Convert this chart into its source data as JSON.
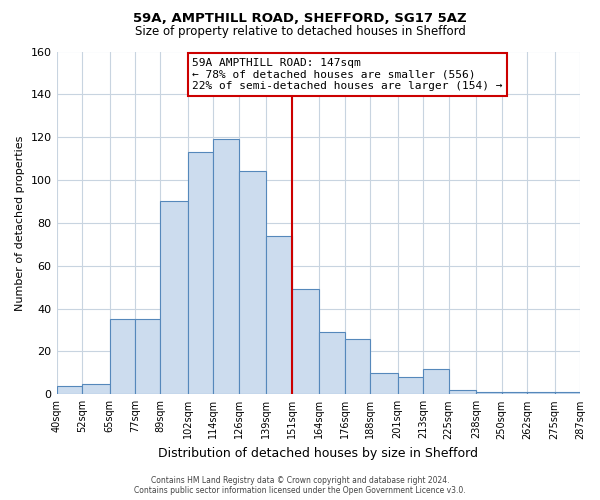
{
  "title1": "59A, AMPTHILL ROAD, SHEFFORD, SG17 5AZ",
  "title2": "Size of property relative to detached houses in Shefford",
  "xlabel": "Distribution of detached houses by size in Shefford",
  "ylabel": "Number of detached properties",
  "bar_edges": [
    40,
    52,
    65,
    77,
    89,
    102,
    114,
    126,
    139,
    151,
    164,
    176,
    188,
    201,
    213,
    225,
    238,
    250,
    262,
    275,
    287
  ],
  "bar_heights": [
    4,
    5,
    35,
    35,
    90,
    113,
    119,
    104,
    74,
    49,
    29,
    26,
    10,
    8,
    12,
    2,
    1,
    1,
    1,
    1
  ],
  "bar_color": "#ccdcee",
  "bar_edge_color": "#5588bb",
  "property_line_x": 151,
  "property_line_color": "#cc0000",
  "ylim": [
    0,
    160
  ],
  "xlim": [
    40,
    287
  ],
  "annotation_title": "59A AMPTHILL ROAD: 147sqm",
  "annotation_line1": "← 78% of detached houses are smaller (556)",
  "annotation_line2": "22% of semi-detached houses are larger (154) →",
  "tick_labels": [
    "40sqm",
    "52sqm",
    "65sqm",
    "77sqm",
    "89sqm",
    "102sqm",
    "114sqm",
    "126sqm",
    "139sqm",
    "151sqm",
    "164sqm",
    "176sqm",
    "188sqm",
    "201sqm",
    "213sqm",
    "225sqm",
    "238sqm",
    "250sqm",
    "262sqm",
    "275sqm",
    "287sqm"
  ],
  "tick_positions": [
    40,
    52,
    65,
    77,
    89,
    102,
    114,
    126,
    139,
    151,
    164,
    176,
    188,
    201,
    213,
    225,
    238,
    250,
    262,
    275,
    287
  ],
  "yticks": [
    0,
    20,
    40,
    60,
    80,
    100,
    120,
    140,
    160
  ],
  "footer1": "Contains HM Land Registry data © Crown copyright and database right 2024.",
  "footer2": "Contains public sector information licensed under the Open Government Licence v3.0.",
  "background_color": "#ffffff",
  "grid_color": "#c8d4e0"
}
